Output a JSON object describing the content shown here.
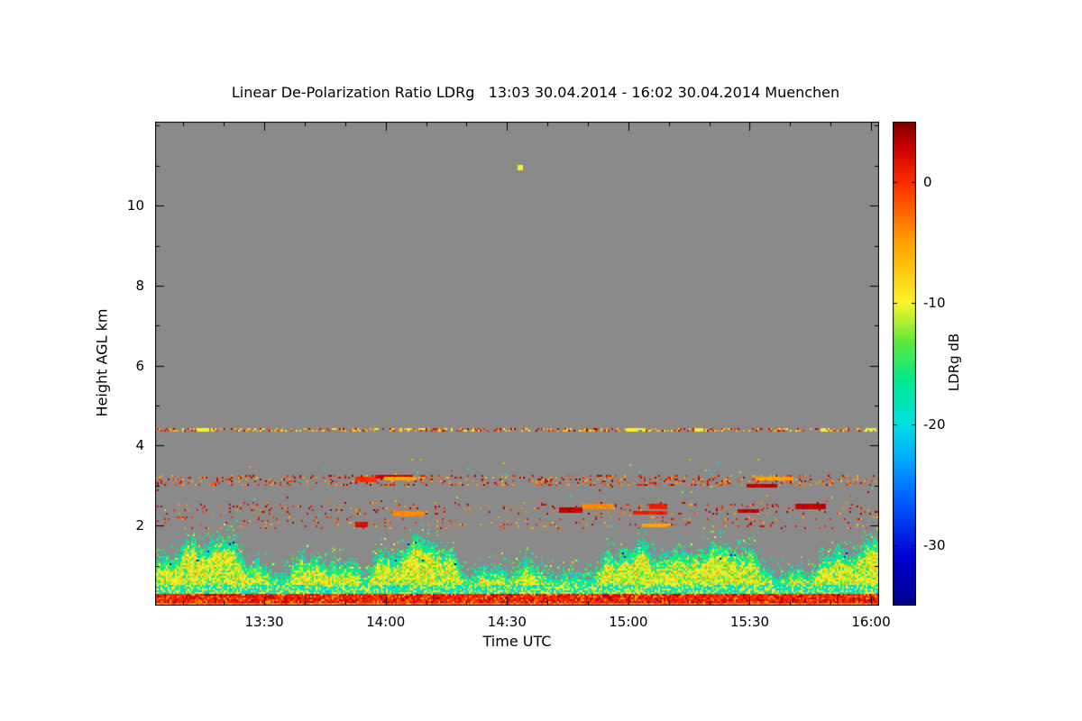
{
  "page": {
    "background_color": "#ffffff"
  },
  "chart_data": {
    "type": "heatmap",
    "title": "Linear De-Polarization Ratio LDRg   13:03 30.04.2014 - 16:02 30.04.2014 Muenchen",
    "site": "Muenchen",
    "time_start": "13:03 30.04.2014",
    "time_end": "16:02 30.04.2014",
    "xlabel": "Time UTC",
    "ylabel": "Height AGL km",
    "x_range_minutes": [
      783,
      962
    ],
    "x_ticks": [
      {
        "minute": 810,
        "label": "13:30"
      },
      {
        "minute": 840,
        "label": "14:00"
      },
      {
        "minute": 870,
        "label": "14:30"
      },
      {
        "minute": 900,
        "label": "15:00"
      },
      {
        "minute": 930,
        "label": "15:30"
      },
      {
        "minute": 960,
        "label": "16:00"
      }
    ],
    "x_minor_step_minutes": 10,
    "y_range_km": [
      0,
      12.1
    ],
    "y_ticks": [
      {
        "value": 2,
        "label": "2"
      },
      {
        "value": 4,
        "label": "4"
      },
      {
        "value": 6,
        "label": "6"
      },
      {
        "value": 8,
        "label": "8"
      },
      {
        "value": 10,
        "label": "10"
      }
    ],
    "y_minor_step_km": 1,
    "grid": false,
    "no_signal_color": "#8a8a8a",
    "colorbar": {
      "label": "LDRg dB",
      "range_db": [
        -35,
        5
      ],
      "ticks": [
        {
          "value": 0,
          "label": "0"
        },
        {
          "value": -10,
          "label": "-10"
        },
        {
          "value": -20,
          "label": "-20"
        },
        {
          "value": -30,
          "label": "-30"
        }
      ],
      "colormap_stops": [
        [
          0.0,
          "#00008b"
        ],
        [
          0.1,
          "#0000d2"
        ],
        [
          0.22,
          "#0060ff"
        ],
        [
          0.3,
          "#00a8ff"
        ],
        [
          0.375,
          "#00e0e0"
        ],
        [
          0.46,
          "#00e896"
        ],
        [
          0.54,
          "#55e93c"
        ],
        [
          0.625,
          "#fdf32a"
        ],
        [
          0.75,
          "#ffa200"
        ],
        [
          0.875,
          "#ff2a00"
        ],
        [
          0.95,
          "#c40000"
        ],
        [
          1.0,
          "#7d0000"
        ]
      ]
    },
    "features": {
      "boundary_layer": {
        "description": "Convective aerosol/boundary layer, surface to ~1-2.3 km; LDRg mostly -8 to -14 dB (yellow) with -15 to -22 dB (green/cyan) speckle near cloud-top edges and sparse -25 to -34 dB (blue) pixels",
        "top_km_typical": 1.5,
        "top_km_min": 0.9,
        "top_km_max": 2.3,
        "core_value_db": -10.5,
        "edge_value_db": -17
      },
      "near_surface_cyan_band": {
        "height_km": [
          0.3,
          0.55
        ],
        "values_db": [
          -19,
          -11
        ]
      },
      "surface_echo_line": {
        "height_km": [
          0.08,
          0.3
        ],
        "values_db": [
          0,
          3,
          -5
        ],
        "description": "continuous red/dark-red surface echo stripe"
      },
      "speckle_bands": [
        {
          "height_km": [
            3.0,
            3.3
          ],
          "density": 0.2,
          "values_db": [
            0,
            3,
            -5
          ],
          "dash_count": 5
        },
        {
          "height_km": [
            2.3,
            2.6
          ],
          "density": 0.09,
          "values_db": [
            1,
            -4,
            3
          ],
          "dash_count": 7
        },
        {
          "height_km": [
            1.95,
            2.25
          ],
          "density": 0.06,
          "values_db": [
            0,
            -5,
            2
          ],
          "dash_count": 2
        }
      ],
      "thin_layer_line": {
        "height_km": 4.4,
        "density": 0.42,
        "values_db": [
          -6,
          -6,
          -9,
          1,
          3
        ],
        "bright_segments_minutes": [
          [
            793,
            797
          ],
          [
            899,
            904
          ],
          [
            916,
            918
          ],
          [
            947,
            949
          ],
          [
            958,
            961
          ]
        ]
      },
      "high_dot": {
        "minute": 873,
        "height_km": 10.95,
        "value_db": -10
      },
      "sparse_dots": {
        "height_km": [
          1.95,
          3.7
        ],
        "density": 0.006,
        "values_db": [
          -1,
          3,
          -6,
          -12,
          -20
        ]
      }
    }
  }
}
